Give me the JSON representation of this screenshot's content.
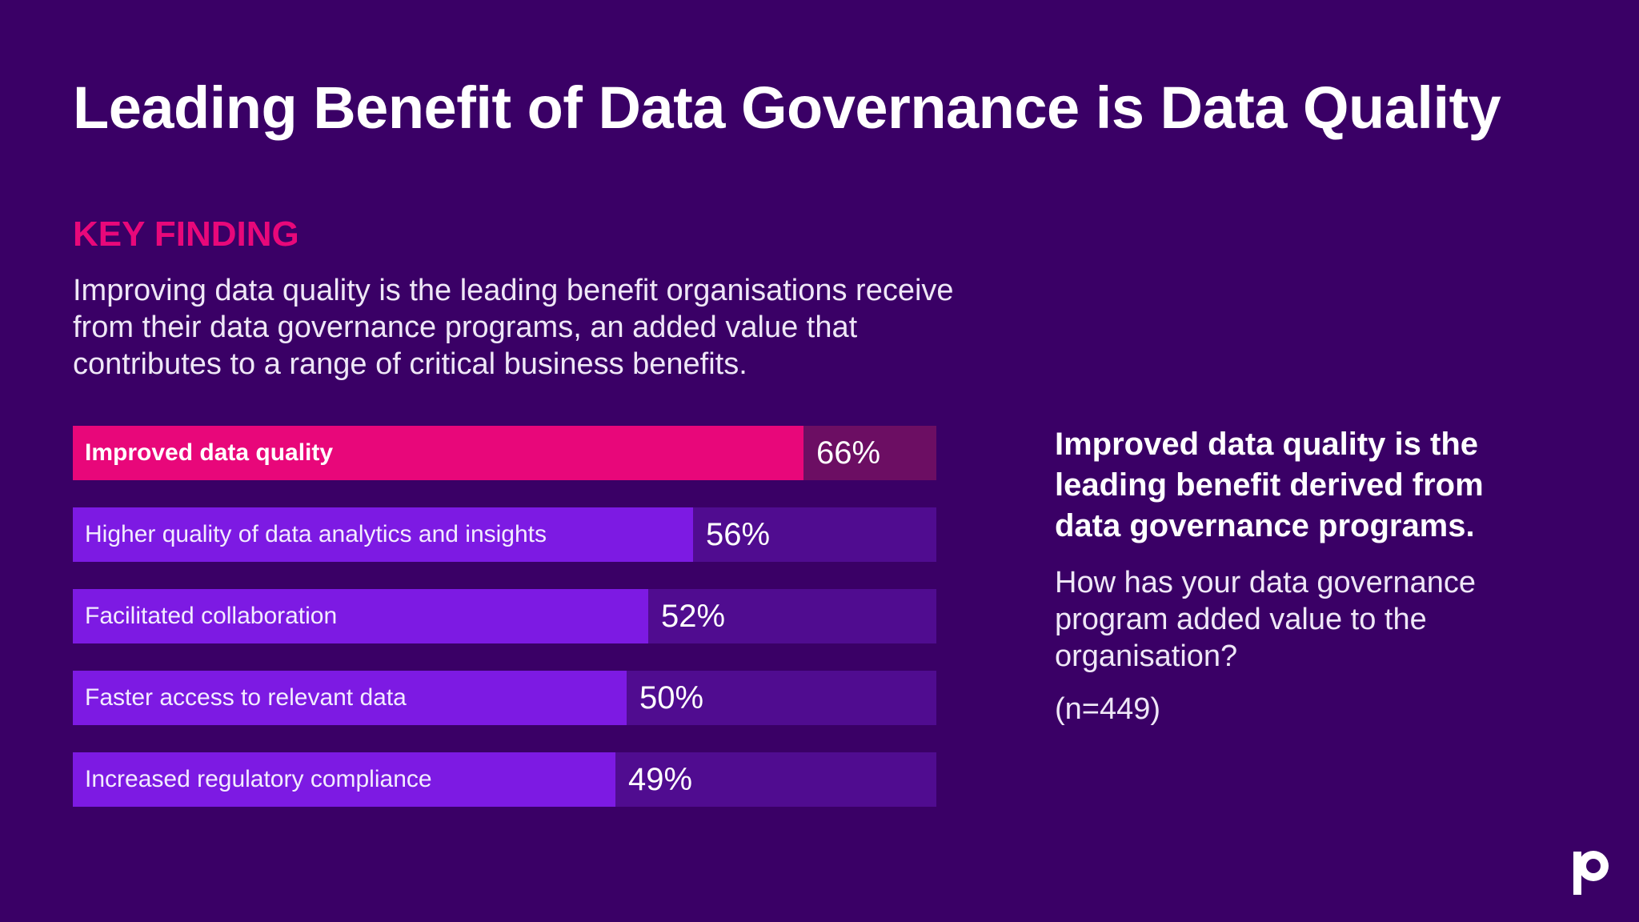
{
  "title": "Leading Benefit of Data Governance is Data Quality",
  "kicker": "KEY FINDING",
  "intro": "Improving data quality is the leading benefit organisations receive from their data governance programs, an added value that contributes to a range of critical business benefits.",
  "side": {
    "heading": "Improved data quality is the leading benefit derived from data governance programs.",
    "question": "How has your data governance program added value to the organisation?",
    "sample": "(n=449)"
  },
  "logo": {
    "icon": "brand-p-logo-icon"
  },
  "colors": {
    "background": "#3a0066",
    "highlight": "#e8077a",
    "bar": "#7d1ae3",
    "track": "#500c90",
    "highlight_track": "#6c0e63",
    "kicker": "#e8087a"
  },
  "chart_data": {
    "type": "bar",
    "orientation": "horizontal",
    "categories": [
      "Improved data quality",
      "Higher quality of data analytics and insights",
      "Facilitated collaboration",
      "Faster access to relevant data",
      "Increased regulatory compliance"
    ],
    "values": [
      66,
      56,
      52,
      50,
      49
    ],
    "value_labels": [
      "66%",
      "56%",
      "52%",
      "50%",
      "49%"
    ],
    "highlight_index": 0,
    "xlim": [
      0,
      78
    ],
    "unit": "%"
  }
}
